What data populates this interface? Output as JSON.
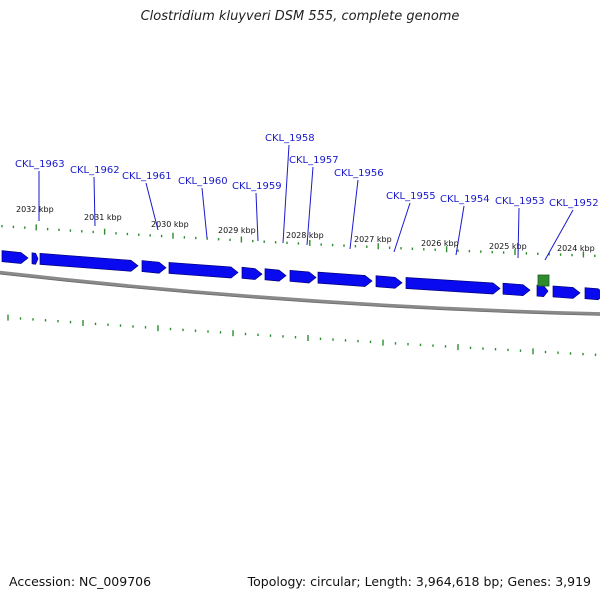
{
  "title": "Clostridium kluyveri DSM 555, complete genome",
  "footer": {
    "accession": "Accession: NC_009706",
    "stats": "Topology: circular; Length: 3,964,618 bp; Genes: 3,919"
  },
  "colors": {
    "gene_fill": "#0a0af0",
    "gene_stroke": "#00007a",
    "label": "#1a1acc",
    "tick": "#2e8b2e",
    "backbone": "#8a8a8a",
    "feature": "#2e8b2e"
  },
  "kbp_labels": [
    "2032 kbp",
    "2031 kbp",
    "2030 kbp",
    "2029 kbp",
    "2028 kbp",
    "2027 kbp",
    "2026 kbp",
    "2025 kbp",
    "2024 kbp"
  ],
  "gene_labels": [
    "CKL_1963",
    "CKL_1962",
    "CKL_1961",
    "CKL_1960",
    "CKL_1959",
    "CKL_1958",
    "CKL_1957",
    "CKL_1956",
    "CKL_1955",
    "CKL_1954",
    "CKL_1953",
    "CKL_1952"
  ]
}
